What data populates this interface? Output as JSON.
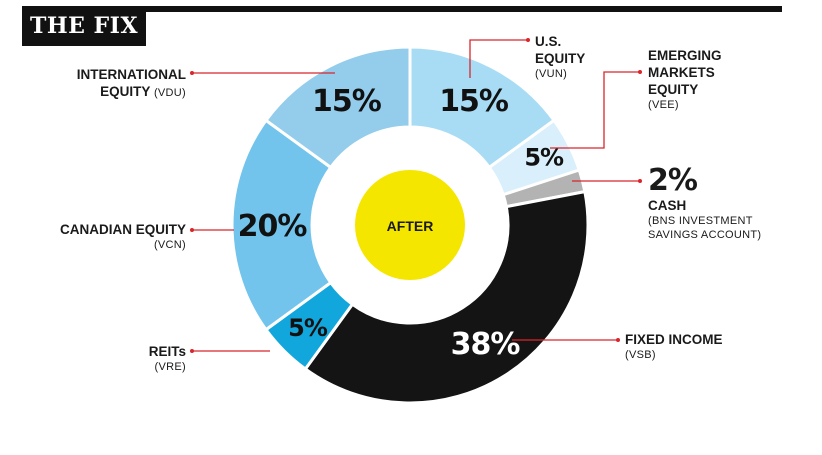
{
  "header": {
    "title": "THE FIX"
  },
  "center_label": "AFTER",
  "colors": {
    "us_equity": "#a8dcf5",
    "emerging": "#d9effb",
    "cash": "#b3b3b3",
    "fixed_income": "#141414",
    "reits": "#12a7dc",
    "canadian": "#72c4ec",
    "international": "#93cdeb",
    "center": "#f5e600",
    "leader": "#d9262c"
  },
  "chart_data": {
    "type": "pie",
    "center_label": "AFTER",
    "slices": [
      {
        "key": "us_equity",
        "value": 15,
        "pct_label": "15%",
        "name": "U.S. EQUITY",
        "ticker": "(VUN)"
      },
      {
        "key": "emerging",
        "value": 5,
        "pct_label": "5%",
        "name": "EMERGING MARKETS EQUITY",
        "ticker": "(VEE)"
      },
      {
        "key": "cash",
        "value": 2,
        "pct_label": "2%",
        "name": "CASH",
        "ticker": "(BNS INVESTMENT SAVINGS ACCOUNT)"
      },
      {
        "key": "fixed_income",
        "value": 38,
        "pct_label": "38%",
        "name": "FIXED INCOME",
        "ticker": "(VSB)"
      },
      {
        "key": "reits",
        "value": 5,
        "pct_label": "5%",
        "name": "REITs",
        "ticker": "(VRE)"
      },
      {
        "key": "canadian",
        "value": 20,
        "pct_label": "20%",
        "name": "CANADIAN EQUITY",
        "ticker": "(VCN)"
      },
      {
        "key": "international",
        "value": 15,
        "pct_label": "15%",
        "name": "INTERNATIONAL EQUITY",
        "ticker": "(VDU)"
      }
    ]
  },
  "labels": {
    "us_equity": {
      "line1": "U.S.",
      "line2": "EQUITY",
      "ticker": "(VUN)"
    },
    "emerging": {
      "line1": "EMERGING",
      "line2": "MARKETS",
      "line3": "EQUITY",
      "ticker": "(VEE)"
    },
    "cash": {
      "pct": "2%",
      "name": "CASH",
      "ticker1": "(BNS INVESTMENT",
      "ticker2": "SAVINGS ACCOUNT)"
    },
    "fixed_income": {
      "name": "FIXED INCOME",
      "ticker": "(VSB)"
    },
    "reits": {
      "name": "REITs",
      "ticker": "(VRE)"
    },
    "canadian": {
      "name": "CANADIAN EQUITY",
      "ticker": "(VCN)"
    },
    "international": {
      "line1": "INTERNATIONAL",
      "line2": "EQUITY",
      "ticker": "(VDU)"
    }
  }
}
